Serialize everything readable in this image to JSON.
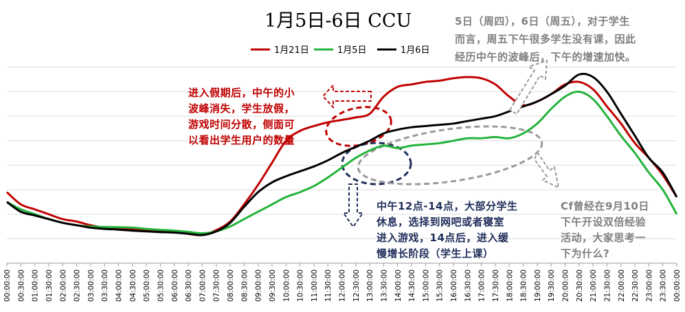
{
  "chart_data": {
    "type": "line",
    "title": "1月5日-6日 CCU",
    "xlabel": "",
    "ylabel": "",
    "y_tick_labels": false,
    "grid": "horizontal",
    "legend_position": "top-center",
    "x": [
      "00:00:00",
      "00:30:00",
      "01:00:00",
      "01:30:00",
      "02:00:00",
      "02:30:00",
      "03:00:00",
      "03:30:00",
      "04:00:00",
      "04:30:00",
      "05:00:00",
      "05:30:00",
      "06:00:00",
      "06:30:00",
      "07:00:00",
      "07:30:00",
      "08:00:00",
      "08:30:00",
      "09:00:00",
      "09:30:00",
      "10:00:00",
      "10:30:00",
      "11:00:00",
      "11:30:00",
      "12:00:00",
      "12:30:00",
      "13:00:00",
      "13:30:00",
      "14:00:00",
      "14:30:00",
      "15:00:00",
      "15:30:00",
      "16:00:00",
      "16:30:00",
      "17:00:00",
      "17:30:00",
      "18:00:00",
      "18:30:00",
      "19:00:00",
      "19:30:00",
      "20:00:00",
      "20:30:00",
      "21:00:00",
      "21:30:00",
      "22:00:00",
      "22:30:00",
      "23:00:00",
      "23:30:00",
      "00:00:00"
    ],
    "series": [
      {
        "name": "1月21日",
        "color": "#c00000",
        "values": [
          2.9,
          2.4,
          2.2,
          2.0,
          1.8,
          1.7,
          1.55,
          1.45,
          1.42,
          1.38,
          1.34,
          1.3,
          1.27,
          1.2,
          1.15,
          1.35,
          1.7,
          2.4,
          3.2,
          4.1,
          5.0,
          5.4,
          5.6,
          5.75,
          5.85,
          5.95,
          6.1,
          6.8,
          7.2,
          7.3,
          7.4,
          7.45,
          7.55,
          7.6,
          7.55,
          7.3,
          6.8,
          6.45,
          6.6,
          6.9,
          7.3,
          7.4,
          7.1,
          6.4,
          5.7,
          4.9,
          4.3,
          3.6,
          2.7
        ]
      },
      {
        "name": "1月5日",
        "color": "#22b33a",
        "values": [
          2.5,
          2.2,
          2.0,
          1.8,
          1.65,
          1.55,
          1.5,
          1.48,
          1.47,
          1.45,
          1.4,
          1.36,
          1.33,
          1.28,
          1.22,
          1.3,
          1.5,
          1.8,
          2.1,
          2.4,
          2.7,
          2.9,
          3.15,
          3.5,
          3.9,
          4.3,
          4.6,
          4.8,
          4.7,
          4.8,
          4.85,
          4.9,
          5.0,
          5.1,
          5.1,
          5.15,
          5.1,
          5.3,
          5.7,
          6.3,
          6.8,
          7.0,
          6.7,
          6.0,
          5.2,
          4.5,
          3.7,
          3.0,
          2.0
        ]
      },
      {
        "name": "1月6日",
        "color": "#000000",
        "values": [
          2.5,
          2.1,
          1.95,
          1.8,
          1.65,
          1.55,
          1.45,
          1.4,
          1.37,
          1.33,
          1.3,
          1.27,
          1.25,
          1.2,
          1.15,
          1.3,
          1.65,
          2.3,
          2.9,
          3.3,
          3.55,
          3.75,
          3.95,
          4.2,
          4.5,
          4.75,
          5.0,
          5.3,
          5.45,
          5.55,
          5.6,
          5.65,
          5.7,
          5.8,
          5.9,
          6.0,
          6.2,
          6.4,
          6.6,
          6.9,
          7.25,
          7.7,
          7.6,
          7.0,
          6.1,
          5.2,
          4.3,
          3.7,
          2.7
        ]
      }
    ],
    "ylim": [
      0,
      8.5
    ]
  },
  "annotations": {
    "a1": [
      "进入假期后，中午的小",
      "波峰消失，学生放假，",
      "游戏时间分散，侧面可",
      "以看出学生用户的数量"
    ],
    "a2": [
      "5日（周四），6日（周五），对于学生",
      "而言，周五下午很多学生没有课，因此",
      "经历中午的波峰后，下午的增速加快。"
    ],
    "a3": [
      "中午12点-14点，大部分学生",
      "休息，选择到网吧或者寝室",
      "进入游戏，14点后，进入缓",
      "慢增长阶段（学生上课）"
    ],
    "a4": [
      "Cf曾经在9月10日",
      "下午开设双倍经验",
      "活动，大家思考一",
      "下为什么?"
    ]
  }
}
